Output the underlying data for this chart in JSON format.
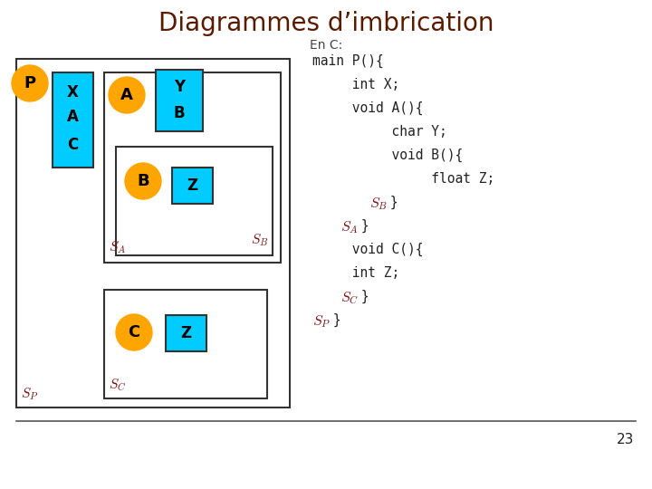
{
  "title": "Diagrammes d’imbrication",
  "title_color": "#5a1a00",
  "subtitle": "En C:",
  "subtitle_color": "#444444",
  "bg_color": "#ffffff",
  "orange": "#FFA500",
  "cyan": "#00CCFF",
  "box_edge": "#333333",
  "code_color": "#222222",
  "s_color": "#7B1010",
  "page_number": "23"
}
